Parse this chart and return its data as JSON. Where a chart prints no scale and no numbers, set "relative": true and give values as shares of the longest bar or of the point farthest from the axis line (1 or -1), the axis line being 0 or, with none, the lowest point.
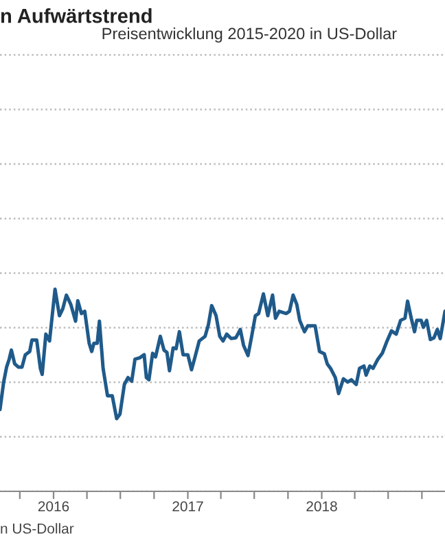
{
  "chart_data": {
    "type": "line",
    "title": "n Aufwärtstrend",
    "subtitle": "Preisentwicklung 2015-2020 in US-Dollar",
    "annotations": [
      "n US-Dollar"
    ],
    "relative": true,
    "grid": "y",
    "tick_labels": "x",
    "xlim": [
      "2015-08-08",
      "2018-12-03"
    ],
    "xticks": [
      {
        "value": "2015-10-01",
        "label": null
      },
      {
        "value": "2016-01-01",
        "label": "2016"
      },
      {
        "value": "2016-04-01",
        "label": null
      },
      {
        "value": "2016-07-01",
        "label": null
      },
      {
        "value": "2016-10-01",
        "label": null
      },
      {
        "value": "2017-01-01",
        "label": "2017"
      },
      {
        "value": "2017-04-01",
        "label": null
      },
      {
        "value": "2017-07-01",
        "label": null
      },
      {
        "value": "2017-10-01",
        "label": null
      },
      {
        "value": "2018-01-01",
        "label": "2018"
      },
      {
        "value": "2018-04-01",
        "label": null
      },
      {
        "value": "2018-07-01",
        "label": null
      },
      {
        "value": "2018-10-01",
        "label": null
      }
    ],
    "x": [
      "2015-08-08",
      "2015-08-18",
      "2015-08-26",
      "2015-09-02",
      "2015-09-08",
      "2015-09-17",
      "2015-09-27",
      "2015-10-07",
      "2015-10-16",
      "2015-10-28",
      "2015-11-03",
      "2015-11-16",
      "2015-11-26",
      "2015-12-01",
      "2015-12-11",
      "2015-12-21",
      "2016-01-05",
      "2016-01-17",
      "2016-01-26",
      "2016-02-05",
      "2016-02-17",
      "2016-03-01",
      "2016-03-07",
      "2016-03-17",
      "2016-03-26",
      "2016-04-07",
      "2016-04-14",
      "2016-04-20",
      "2016-04-29",
      "2016-05-05",
      "2016-05-15",
      "2016-05-27",
      "2016-06-09",
      "2016-06-21",
      "2016-06-30",
      "2016-07-12",
      "2016-07-22",
      "2016-08-01",
      "2016-08-10",
      "2016-08-23",
      "2016-09-04",
      "2016-09-10",
      "2016-09-17",
      "2016-09-27",
      "2016-10-05",
      "2016-10-18",
      "2016-10-28",
      "2016-11-05",
      "2016-11-12",
      "2016-11-22",
      "2016-11-30",
      "2016-12-09",
      "2016-12-19",
      "2017-01-01",
      "2017-01-11",
      "2017-01-19",
      "2017-02-01",
      "2017-02-17",
      "2017-02-26",
      "2017-03-07",
      "2017-03-19",
      "2017-03-29",
      "2017-04-07",
      "2017-04-17",
      "2017-04-29",
      "2017-05-12",
      "2017-05-24",
      "2017-06-02",
      "2017-06-14",
      "2017-06-24",
      "2017-07-04",
      "2017-07-13",
      "2017-07-26",
      "2017-08-07",
      "2017-08-20",
      "2017-08-28",
      "2017-09-07",
      "2017-09-26",
      "2017-10-05",
      "2017-10-15",
      "2017-10-25",
      "2017-11-02",
      "2017-11-15",
      "2017-11-24",
      "2017-12-14",
      "2017-12-26",
      "2018-01-08",
      "2018-01-16",
      "2018-01-25",
      "2018-02-07",
      "2018-02-16",
      "2018-03-01",
      "2018-03-13",
      "2018-03-23",
      "2018-04-05",
      "2018-04-14",
      "2018-04-26",
      "2018-05-02",
      "2018-05-12",
      "2018-05-21",
      "2018-06-03",
      "2018-06-15",
      "2018-06-28",
      "2018-07-10",
      "2018-07-23",
      "2018-08-04",
      "2018-08-16",
      "2018-08-23",
      "2018-09-02",
      "2018-09-11",
      "2018-09-17",
      "2018-09-29",
      "2018-10-05",
      "2018-10-14",
      "2018-10-24",
      "2018-11-03",
      "2018-11-12",
      "2018-11-20",
      "2018-12-03"
    ],
    "series": [
      {
        "color": "#1f5a8a",
        "values": [
          0.405,
          0.541,
          0.615,
          0.654,
          0.699,
          0.631,
          0.615,
          0.615,
          0.676,
          0.692,
          0.749,
          0.749,
          0.609,
          0.579,
          0.778,
          0.744,
          1.0,
          0.869,
          0.903,
          0.971,
          0.925,
          0.842,
          0.943,
          0.88,
          0.891,
          0.733,
          0.692,
          0.733,
          0.733,
          0.842,
          0.609,
          0.473,
          0.473,
          0.36,
          0.382,
          0.529,
          0.563,
          0.545,
          0.654,
          0.661,
          0.676,
          0.563,
          0.552,
          0.683,
          0.665,
          0.767,
          0.699,
          0.688,
          0.597,
          0.71,
          0.706,
          0.79,
          0.676,
          0.676,
          0.602,
          0.654,
          0.744,
          0.767,
          0.824,
          0.919,
          0.869,
          0.767,
          0.744,
          0.778,
          0.756,
          0.76,
          0.801,
          0.722,
          0.672,
          0.767,
          0.869,
          0.88,
          0.977,
          0.869,
          0.971,
          0.857,
          0.891,
          0.88,
          0.891,
          0.971,
          0.925,
          0.846,
          0.79,
          0.819,
          0.819,
          0.692,
          0.681,
          0.631,
          0.609,
          0.563,
          0.484,
          0.557,
          0.541,
          0.552,
          0.529,
          0.609,
          0.62,
          0.575,
          0.62,
          0.609,
          0.654,
          0.683,
          0.744,
          0.794,
          0.778,
          0.846,
          0.857,
          0.941,
          0.857,
          0.79,
          0.846,
          0.846,
          0.812,
          0.846,
          0.751,
          0.76,
          0.801,
          0.756,
          0.891
        ]
      }
    ]
  }
}
